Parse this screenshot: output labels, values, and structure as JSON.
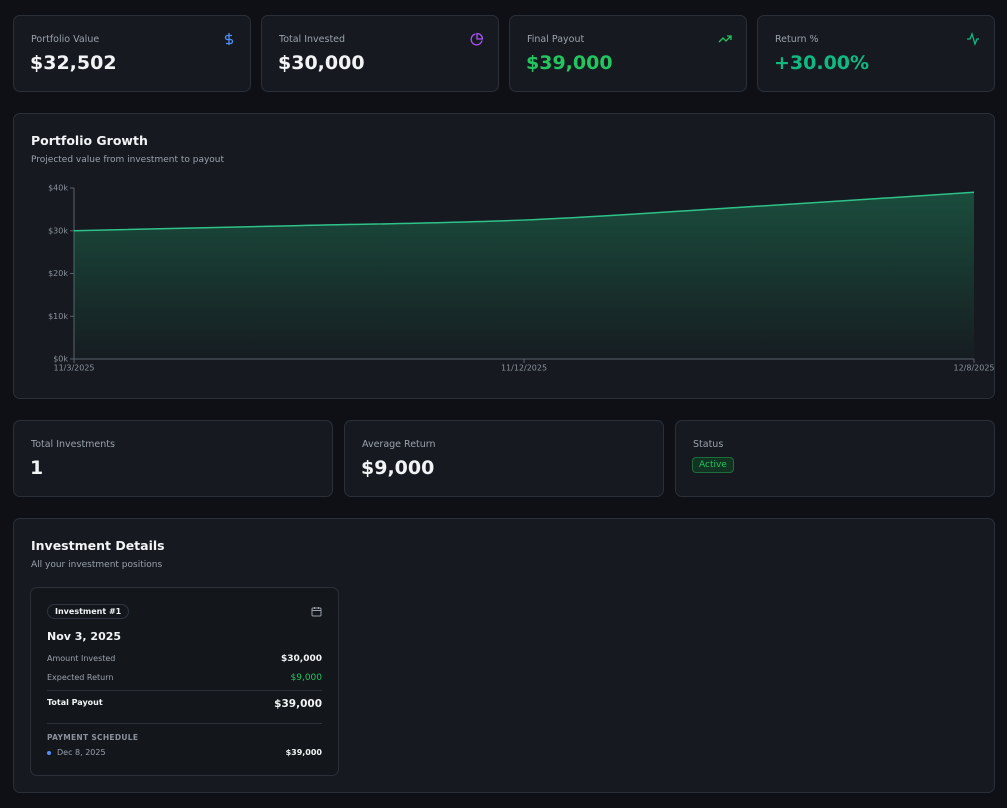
{
  "stats": [
    {
      "label": "Portfolio Value",
      "value": "$32,502"
    },
    {
      "label": "Total Invested",
      "value": "$30,000"
    },
    {
      "label": "Final Payout",
      "value": "$39,000"
    },
    {
      "label": "Return %",
      "value": "+30.00%"
    }
  ],
  "chart_data": {
    "type": "area",
    "title": "Portfolio Growth",
    "subtitle": "Projected value from investment to payout",
    "categories": [
      "11/3/2025",
      null,
      "11/12/2025",
      null,
      "12/8/2025"
    ],
    "values": [
      30000,
      31200,
      32500,
      35600,
      39000
    ],
    "color": "#2ec28a",
    "ylim": [
      0,
      40000
    ],
    "yticks": [
      {
        "value": 0,
        "label": "$0k"
      },
      {
        "value": 10000,
        "label": "$10k"
      },
      {
        "value": 20000,
        "label": "$20k"
      },
      {
        "value": 30000,
        "label": "$30k"
      },
      {
        "value": 40000,
        "label": "$40k"
      }
    ]
  },
  "summary": [
    {
      "label": "Total Investments",
      "value": "1"
    },
    {
      "label": "Average Return",
      "value": "$9,000"
    },
    {
      "label": "Status",
      "value": "Active"
    }
  ],
  "details": {
    "title": "Investment Details",
    "subtitle": "All your investment positions",
    "investments": [
      {
        "badge": "Investment #1",
        "date": "Nov 3, 2025",
        "rows": [
          {
            "label": "Amount Invested",
            "value": "$30,000"
          },
          {
            "label": "Expected Return",
            "value": "$9,000"
          }
        ],
        "total": {
          "label": "Total Payout",
          "value": "$39,000"
        },
        "schedule_title": "PAYMENT SCHEDULE",
        "schedule": [
          {
            "date": "Dec 8, 2025",
            "amount": "$39,000"
          }
        ]
      }
    ]
  }
}
